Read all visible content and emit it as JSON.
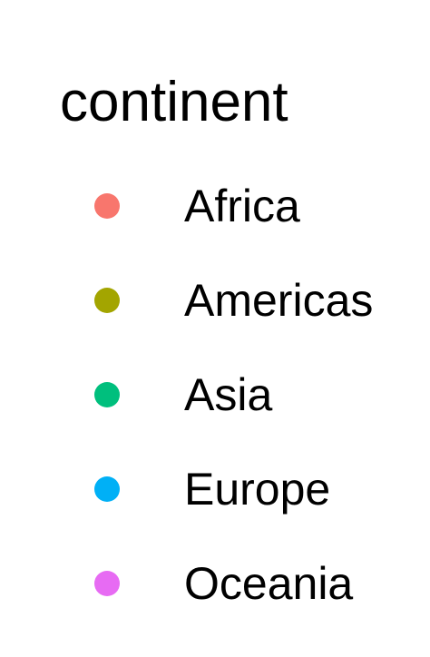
{
  "chart_data": {
    "type": "scatter",
    "legend": {
      "title": "continent",
      "items": [
        {
          "label": "Africa",
          "color": "#F8766D"
        },
        {
          "label": "Americas",
          "color": "#A3A500"
        },
        {
          "label": "Asia",
          "color": "#00BF7D"
        },
        {
          "label": "Europe",
          "color": "#00B0F6"
        },
        {
          "label": "Oceania",
          "color": "#E76BF3"
        }
      ]
    }
  }
}
